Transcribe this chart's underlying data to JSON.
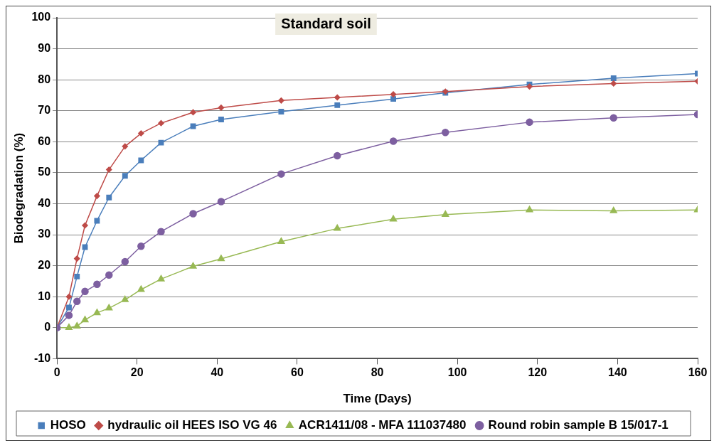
{
  "chart_data": {
    "type": "line",
    "title": "Standard soil",
    "xlabel": "Time (Days)",
    "ylabel": "Biodegradation (%)",
    "x": [
      0,
      3,
      5,
      7,
      10,
      13,
      17,
      21,
      26,
      34,
      41,
      56,
      70,
      84,
      97,
      118,
      139,
      160
    ],
    "xlim": [
      0,
      160
    ],
    "xticks": [
      0,
      20,
      40,
      60,
      80,
      100,
      120,
      140,
      160
    ],
    "ylim": [
      -10,
      100
    ],
    "yticks": [
      -10,
      0,
      10,
      20,
      30,
      40,
      50,
      60,
      70,
      80,
      90,
      100
    ],
    "grid": "y",
    "legend": "bottom",
    "line_style": "solid",
    "series": [
      {
        "name": "HOSO",
        "color": "#4a7ebb",
        "marker": "square",
        "values": [
          0,
          6.5,
          16.5,
          26,
          34.5,
          42,
          49,
          54,
          59.7,
          65,
          67.2,
          69.7,
          71.8,
          73.8,
          75.8,
          78.5,
          80.5,
          82
        ]
      },
      {
        "name": "hydraulic oil HEES ISO VG 46",
        "color": "#be4b48",
        "marker": "diamond",
        "values": [
          0,
          10,
          22.3,
          33,
          42.5,
          51,
          58.5,
          62.7,
          66,
          69.5,
          71,
          73.3,
          74.3,
          75.3,
          76.2,
          77.8,
          78.8,
          79.5
        ]
      },
      {
        "name": "ACR1411/08 - MFA 111037480",
        "color": "#98b954",
        "marker": "triangle",
        "values": [
          0,
          0,
          0.5,
          2.5,
          4.8,
          6.3,
          9,
          12.3,
          15.7,
          19.8,
          22.2,
          27.8,
          32,
          35,
          36.5,
          38,
          37.7,
          38
        ]
      },
      {
        "name": "Round robin sample B 15/017-1",
        "color": "#7d5fa0",
        "marker": "circle",
        "values": [
          0,
          4,
          8.5,
          11.7,
          14,
          17,
          21.3,
          26.3,
          31,
          36.8,
          40.7,
          49.6,
          55.5,
          60.2,
          63,
          66.3,
          67.7,
          68.8
        ]
      }
    ]
  }
}
